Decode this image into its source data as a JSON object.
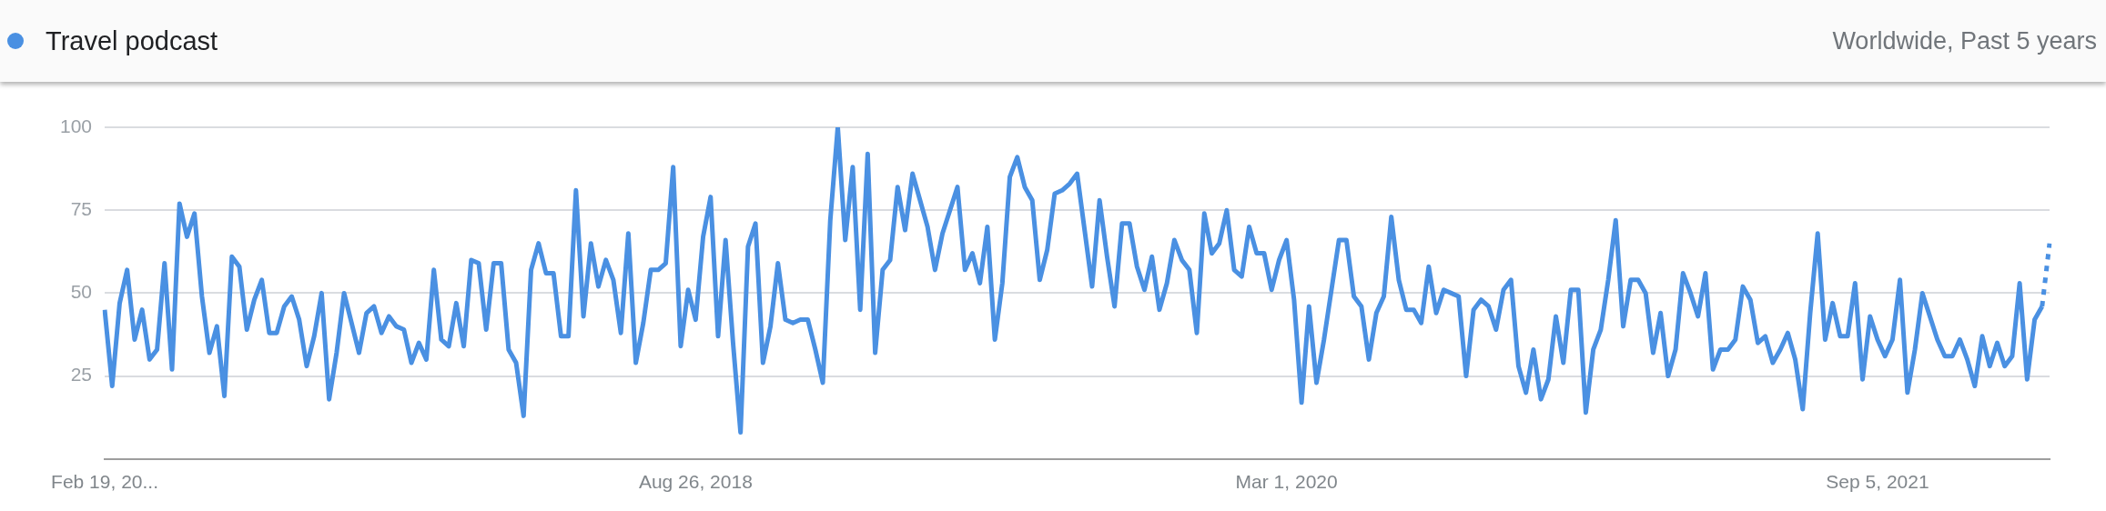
{
  "chart_data": {
    "type": "line",
    "subtitle": "Worldwide, Past 5 years",
    "categories": [
      "Feb 19, 20...",
      null,
      null,
      null,
      null,
      null,
      null,
      null,
      null,
      null,
      null,
      null,
      null,
      null,
      null,
      null,
      null,
      null,
      null,
      null,
      null,
      null,
      null,
      null,
      null,
      null,
      null,
      null,
      null,
      null,
      null,
      null,
      null,
      null,
      null,
      null,
      null,
      null,
      null,
      null,
      null,
      null,
      null,
      null,
      null,
      null,
      null,
      null,
      null,
      null,
      null,
      null,
      null,
      null,
      null,
      null,
      null,
      null,
      null,
      null,
      null,
      null,
      null,
      null,
      null,
      null,
      null,
      null,
      null,
      null,
      null,
      null,
      null,
      null,
      null,
      null,
      null,
      null,
      null,
      "Aug 26, 2018",
      null,
      null,
      null,
      null,
      null,
      null,
      null,
      null,
      null,
      null,
      null,
      null,
      null,
      null,
      null,
      null,
      null,
      null,
      null,
      null,
      null,
      null,
      null,
      null,
      null,
      null,
      null,
      null,
      null,
      null,
      null,
      null,
      null,
      null,
      null,
      null,
      null,
      null,
      null,
      null,
      null,
      null,
      null,
      null,
      null,
      null,
      null,
      null,
      null,
      null,
      null,
      null,
      null,
      null,
      null,
      null,
      null,
      null,
      null,
      null,
      null,
      null,
      null,
      null,
      null,
      null,
      null,
      null,
      null,
      null,
      null,
      null,
      null,
      null,
      null,
      null,
      null,
      null,
      "Mar 1, 2020",
      null,
      null,
      null,
      null,
      null,
      null,
      null,
      null,
      null,
      null,
      null,
      null,
      null,
      null,
      null,
      null,
      null,
      null,
      null,
      null,
      null,
      null,
      null,
      null,
      null,
      null,
      null,
      null,
      null,
      null,
      null,
      null,
      null,
      null,
      null,
      null,
      null,
      null,
      null,
      null,
      null,
      null,
      null,
      null,
      null,
      null,
      null,
      null,
      null,
      null,
      null,
      null,
      null,
      null,
      null,
      null,
      null,
      null,
      null,
      null,
      null,
      null,
      null,
      null,
      null,
      null,
      null,
      null,
      null,
      null,
      null,
      null,
      null,
      null,
      null,
      null,
      null,
      null,
      "Sep 5, 2021",
      null,
      null,
      null,
      null,
      null,
      null,
      null,
      null,
      null,
      null,
      null,
      null,
      null,
      null,
      null,
      null,
      null,
      null,
      null,
      null,
      null,
      null,
      null
    ],
    "series": [
      {
        "name": "Travel podcast",
        "color": "#4a90e2",
        "values": [
          45,
          22,
          47,
          57,
          36,
          45,
          30,
          33,
          59,
          27,
          77,
          67,
          74,
          49,
          32,
          40,
          19,
          61,
          58,
          39,
          48,
          54,
          38,
          38,
          46,
          49,
          42,
          28,
          37,
          50,
          18,
          32,
          50,
          41,
          32,
          44,
          46,
          38,
          43,
          40,
          39,
          29,
          35,
          30,
          57,
          36,
          34,
          47,
          34,
          60,
          59,
          39,
          59,
          59,
          33,
          29,
          13,
          57,
          65,
          56,
          56,
          37,
          37,
          81,
          43,
          65,
          52,
          60,
          54,
          38,
          68,
          29,
          41,
          57,
          57,
          59,
          88,
          34,
          51,
          42,
          67,
          79,
          37,
          66,
          35,
          8,
          64,
          71,
          29,
          40,
          59,
          42,
          41,
          42,
          42,
          33,
          23,
          72,
          100,
          66,
          88,
          45,
          92,
          32,
          57,
          60,
          82,
          69,
          86,
          78,
          70,
          57,
          68,
          75,
          82,
          57,
          62,
          53,
          70,
          36,
          53,
          85,
          91,
          82,
          78,
          54,
          63,
          80,
          81,
          83,
          86,
          69,
          52,
          78,
          61,
          46,
          71,
          71,
          58,
          51,
          61,
          45,
          53,
          66,
          60,
          57,
          38,
          74,
          62,
          65,
          75,
          57,
          55,
          70,
          62,
          62,
          51,
          60,
          66,
          48,
          17,
          46,
          23,
          36,
          51,
          66,
          66,
          49,
          46,
          30,
          44,
          49,
          73,
          54,
          45,
          45,
          41,
          58,
          44,
          51,
          50,
          49,
          25,
          45,
          48,
          46,
          39,
          51,
          54,
          28,
          20,
          33,
          18,
          24,
          43,
          29,
          51,
          51,
          14,
          33,
          39,
          54,
          72,
          40,
          54,
          54,
          50,
          32,
          44,
          25,
          33,
          56,
          50,
          43,
          56,
          27,
          33,
          33,
          36,
          52,
          48,
          35,
          37,
          29,
          33,
          38,
          30,
          15,
          44,
          68,
          36,
          47,
          37,
          37,
          53,
          24,
          43,
          36,
          31,
          36,
          54,
          20,
          33,
          50,
          43,
          36,
          31,
          31,
          36,
          30,
          22,
          37,
          28,
          35,
          28,
          31,
          53,
          24,
          42,
          46,
          null
        ]
      },
      {
        "color": "#4a90e2",
        "line_style": "dotted",
        "values": [
          null,
          null,
          null,
          null,
          null,
          null,
          null,
          null,
          null,
          null,
          null,
          null,
          null,
          null,
          null,
          null,
          null,
          null,
          null,
          null,
          null,
          null,
          null,
          null,
          null,
          null,
          null,
          null,
          null,
          null,
          null,
          null,
          null,
          null,
          null,
          null,
          null,
          null,
          null,
          null,
          null,
          null,
          null,
          null,
          null,
          null,
          null,
          null,
          null,
          null,
          null,
          null,
          null,
          null,
          null,
          null,
          null,
          null,
          null,
          null,
          null,
          null,
          null,
          null,
          null,
          null,
          null,
          null,
          null,
          null,
          null,
          null,
          null,
          null,
          null,
          null,
          null,
          null,
          null,
          null,
          null,
          null,
          null,
          null,
          null,
          null,
          null,
          null,
          null,
          null,
          null,
          null,
          null,
          null,
          null,
          null,
          null,
          null,
          null,
          null,
          null,
          null,
          null,
          null,
          null,
          null,
          null,
          null,
          null,
          null,
          null,
          null,
          null,
          null,
          null,
          null,
          null,
          null,
          null,
          null,
          null,
          null,
          null,
          null,
          null,
          null,
          null,
          null,
          null,
          null,
          null,
          null,
          null,
          null,
          null,
          null,
          null,
          null,
          null,
          null,
          null,
          null,
          null,
          null,
          null,
          null,
          null,
          null,
          null,
          null,
          null,
          null,
          null,
          null,
          null,
          null,
          null,
          null,
          null,
          null,
          null,
          null,
          null,
          null,
          null,
          null,
          null,
          null,
          null,
          null,
          null,
          null,
          null,
          null,
          null,
          null,
          null,
          null,
          null,
          null,
          null,
          null,
          null,
          null,
          null,
          null,
          null,
          null,
          null,
          null,
          null,
          null,
          null,
          null,
          null,
          null,
          null,
          null,
          null,
          null,
          null,
          null,
          null,
          null,
          null,
          null,
          null,
          null,
          null,
          null,
          null,
          null,
          null,
          null,
          null,
          null,
          null,
          null,
          null,
          null,
          null,
          null,
          null,
          null,
          null,
          null,
          null,
          null,
          null,
          null,
          null,
          null,
          null,
          null,
          null,
          null,
          null,
          null,
          null,
          null,
          null,
          null,
          null,
          null,
          null,
          null,
          null,
          null,
          null,
          null,
          null,
          null,
          null,
          null,
          null,
          null,
          null,
          null,
          null,
          46,
          65
        ]
      }
    ],
    "ylim": [
      0,
      100
    ],
    "yticks": [
      25,
      50,
      75,
      100
    ],
    "grid": "y",
    "legend": "top left",
    "marker": "none",
    "line_style": "solid"
  }
}
